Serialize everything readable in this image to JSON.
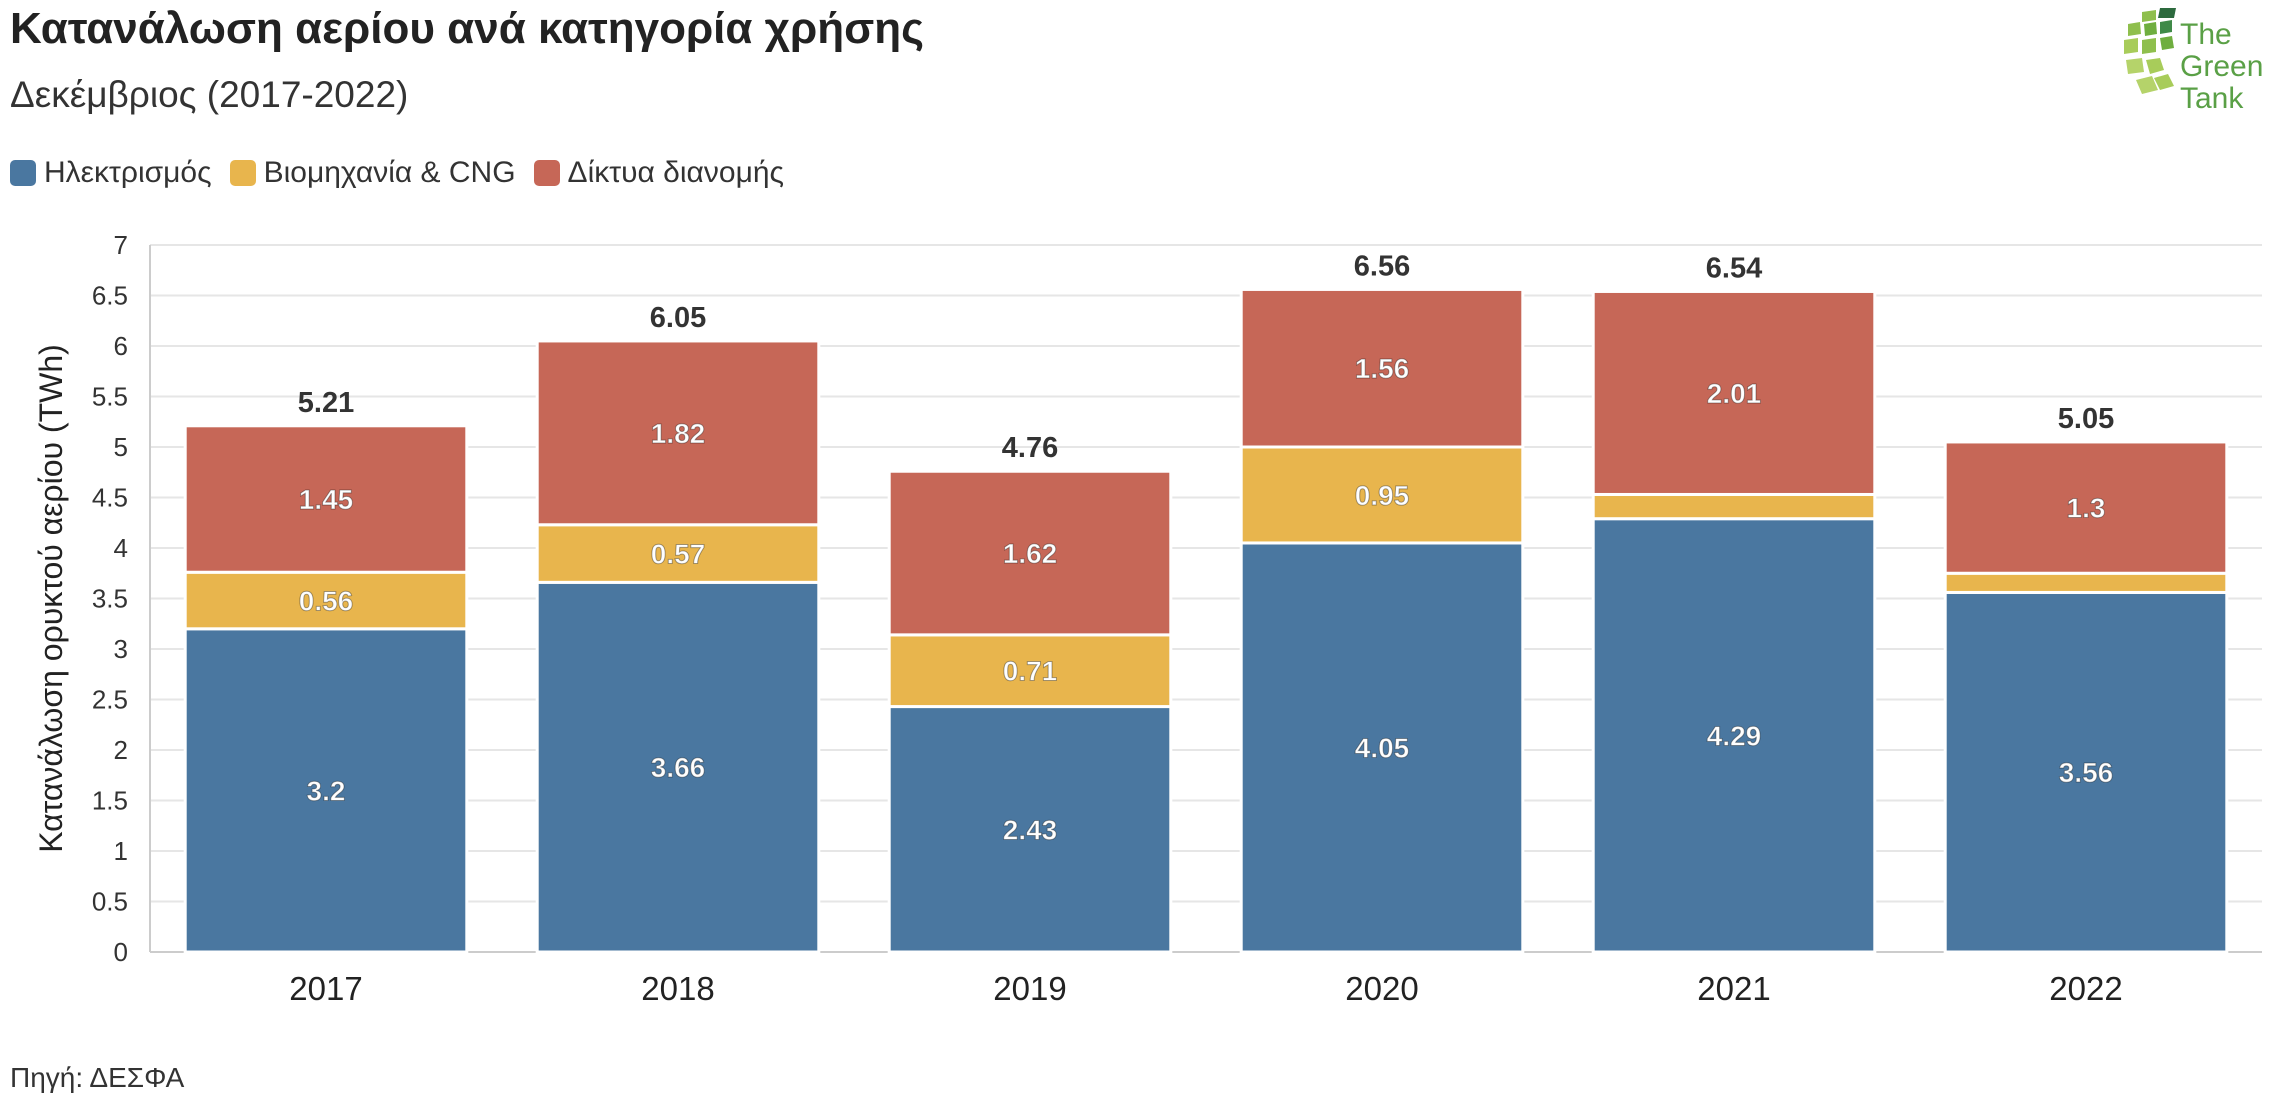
{
  "title": "Κατανάλωση αερίου ανά κατηγορία χρήσης",
  "subtitle": "Δεκέμβριος (2017-2022)",
  "source": "Πηγή: ΔΕΣΦΑ",
  "logo": {
    "line1": "The",
    "line2": "Green",
    "line3": "Tank"
  },
  "legend": [
    {
      "label": "Ηλεκτρισμός",
      "color": "#4a77a0"
    },
    {
      "label": "Βιομηχανία & CNG",
      "color": "#e8b54d"
    },
    {
      "label": "Δίκτυα διανομής",
      "color": "#c66757"
    }
  ],
  "chart_data": {
    "type": "bar",
    "stacked": true,
    "categories": [
      "2017",
      "2018",
      "2019",
      "2020",
      "2021",
      "2022"
    ],
    "series": [
      {
        "name": "Ηλεκτρισμός",
        "color": "#4a77a0",
        "values": [
          3.2,
          3.66,
          2.43,
          4.05,
          4.29,
          3.56
        ],
        "labels": [
          "3.2",
          "3.66",
          "2.43",
          "4.05",
          "4.29",
          "3.56"
        ]
      },
      {
        "name": "Βιομηχανία & CNG",
        "color": "#e8b54d",
        "values": [
          0.56,
          0.57,
          0.71,
          0.95,
          0.24,
          0.19
        ],
        "labels": [
          "0.56",
          "0.57",
          "0.71",
          "0.95",
          "",
          ""
        ]
      },
      {
        "name": "Δίκτυα διανομής",
        "color": "#c66757",
        "values": [
          1.45,
          1.82,
          1.62,
          1.56,
          2.01,
          1.3
        ],
        "labels": [
          "1.45",
          "1.82",
          "1.62",
          "1.56",
          "2.01",
          "1.3"
        ]
      }
    ],
    "totals": [
      "5.21",
      "6.05",
      "4.76",
      "6.56",
      "6.54",
      "5.05"
    ],
    "ylabel": "Κατανάλωση ορυκτού αερίου (TWh)",
    "ylim": [
      0,
      7
    ],
    "yticks": [
      "0",
      "0.5",
      "1",
      "1.5",
      "2",
      "2.5",
      "3",
      "3.5",
      "4",
      "4.5",
      "5",
      "5.5",
      "6",
      "6.5",
      "7"
    ],
    "grid": true,
    "legend_position": "top-left"
  }
}
